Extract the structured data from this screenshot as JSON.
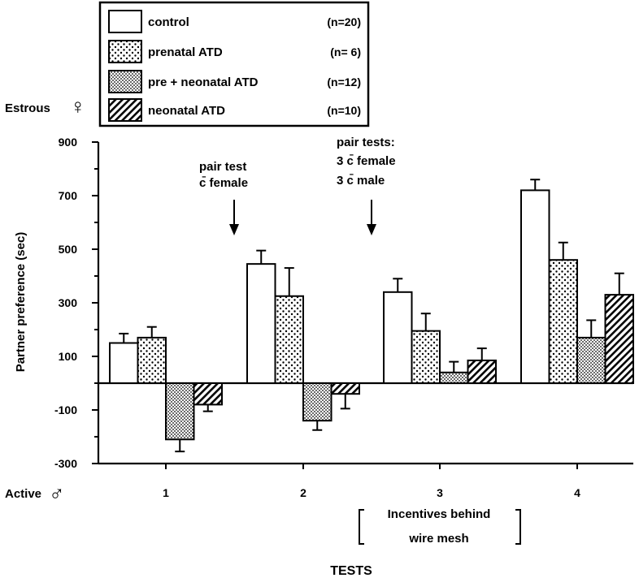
{
  "chart_data": {
    "type": "bar",
    "categories": [
      "1",
      "2",
      "3",
      "4"
    ],
    "series": [
      {
        "name": "control",
        "n": "(n=20)",
        "pattern": "white",
        "values": [
          150,
          445,
          340,
          720
        ],
        "errors": [
          35,
          50,
          50,
          40
        ]
      },
      {
        "name": "prenatal ATD",
        "n": "(n= 6)",
        "pattern": "coarse-dots",
        "values": [
          170,
          325,
          195,
          460
        ],
        "errors": [
          40,
          105,
          65,
          65
        ]
      },
      {
        "name": "pre + neonatal ATD",
        "n": "(n=12)",
        "pattern": "fine-dots",
        "values": [
          -210,
          -140,
          40,
          170
        ],
        "errors": [
          45,
          35,
          40,
          65
        ]
      },
      {
        "name": "neonatal ATD",
        "n": "(n=10)",
        "pattern": "diagonal-hatch",
        "values": [
          -80,
          -40,
          85,
          330
        ],
        "errors": [
          25,
          55,
          45,
          80
        ]
      }
    ],
    "ylabel": "Partner preference  (sec)",
    "xlabel": "TESTS",
    "ylim": [
      -300,
      900
    ],
    "yticks": [
      "900",
      "700",
      "500",
      "300",
      "100",
      "-100",
      "-300"
    ],
    "ytick_values": [
      900,
      700,
      500,
      300,
      100,
      -100,
      -300
    ],
    "top_left_label": "Estrous",
    "top_left_symbol": "♀",
    "bottom_left_label": "Active",
    "bottom_left_symbol": "♂",
    "annotations": {
      "pair_test": [
        "pair test",
        "c̄ female"
      ],
      "pair_tests": [
        "pair tests:",
        "3 c̄ female",
        "3 c̄ male"
      ],
      "incentives": [
        "Incentives behind",
        "wire mesh"
      ]
    },
    "legend_position": "top-left",
    "grid": false,
    "colors": {
      "bars": "#000000",
      "background": "#ffffff"
    }
  }
}
